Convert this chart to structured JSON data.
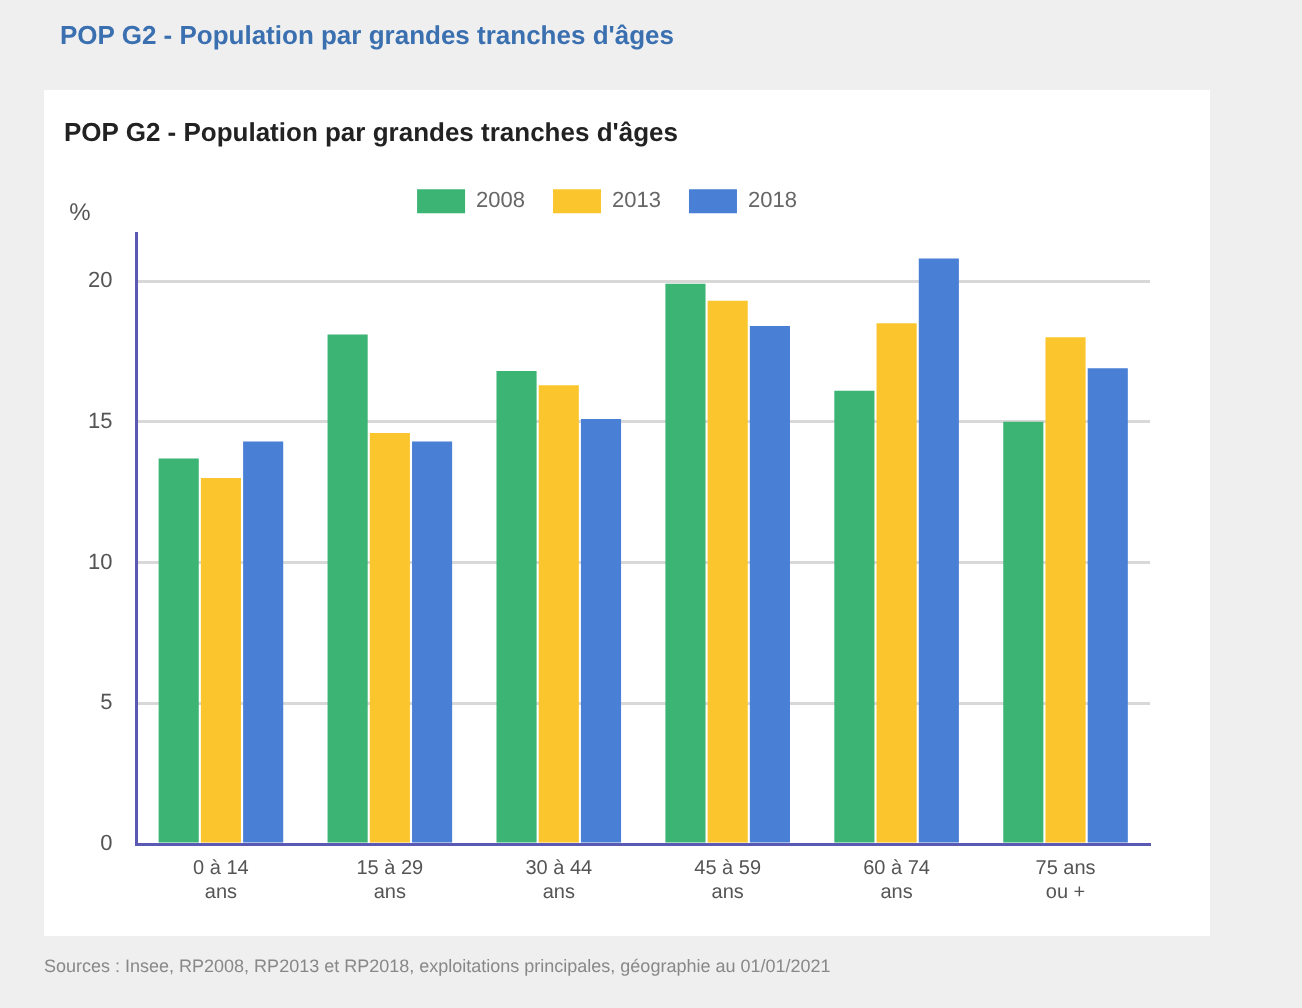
{
  "chart_data": {
    "type": "bar",
    "title": "POP G2 - Population par grandes tranches d'âges",
    "ylabel": "%",
    "categories": [
      "0 à 14 ans",
      "15 à 29 ans",
      "30 à 44 ans",
      "45 à 59 ans",
      "60 à 74 ans",
      "75 ans ou +"
    ],
    "series": [
      {
        "name": "2008",
        "color": "#3cb474",
        "values": [
          13.7,
          18.1,
          16.8,
          19.9,
          16.1,
          15.0
        ]
      },
      {
        "name": "2013",
        "color": "#fbc62d",
        "values": [
          13.0,
          14.6,
          16.3,
          19.3,
          18.5,
          18.0
        ]
      },
      {
        "name": "2018",
        "color": "#4a7fd6",
        "values": [
          14.3,
          14.3,
          15.1,
          18.4,
          20.8,
          16.9
        ]
      }
    ],
    "ylim": [
      0,
      21.7
    ],
    "yticks": [
      0,
      5,
      10,
      15,
      20
    ],
    "grid": "y",
    "legend": "top",
    "annotations": [
      "POP G2 - Population par grandes tranches d'âges",
      "Sources : Insee, RP2008, RP2013 et RP2018, exploitations principales, géographie au 01/01/2021"
    ]
  }
}
